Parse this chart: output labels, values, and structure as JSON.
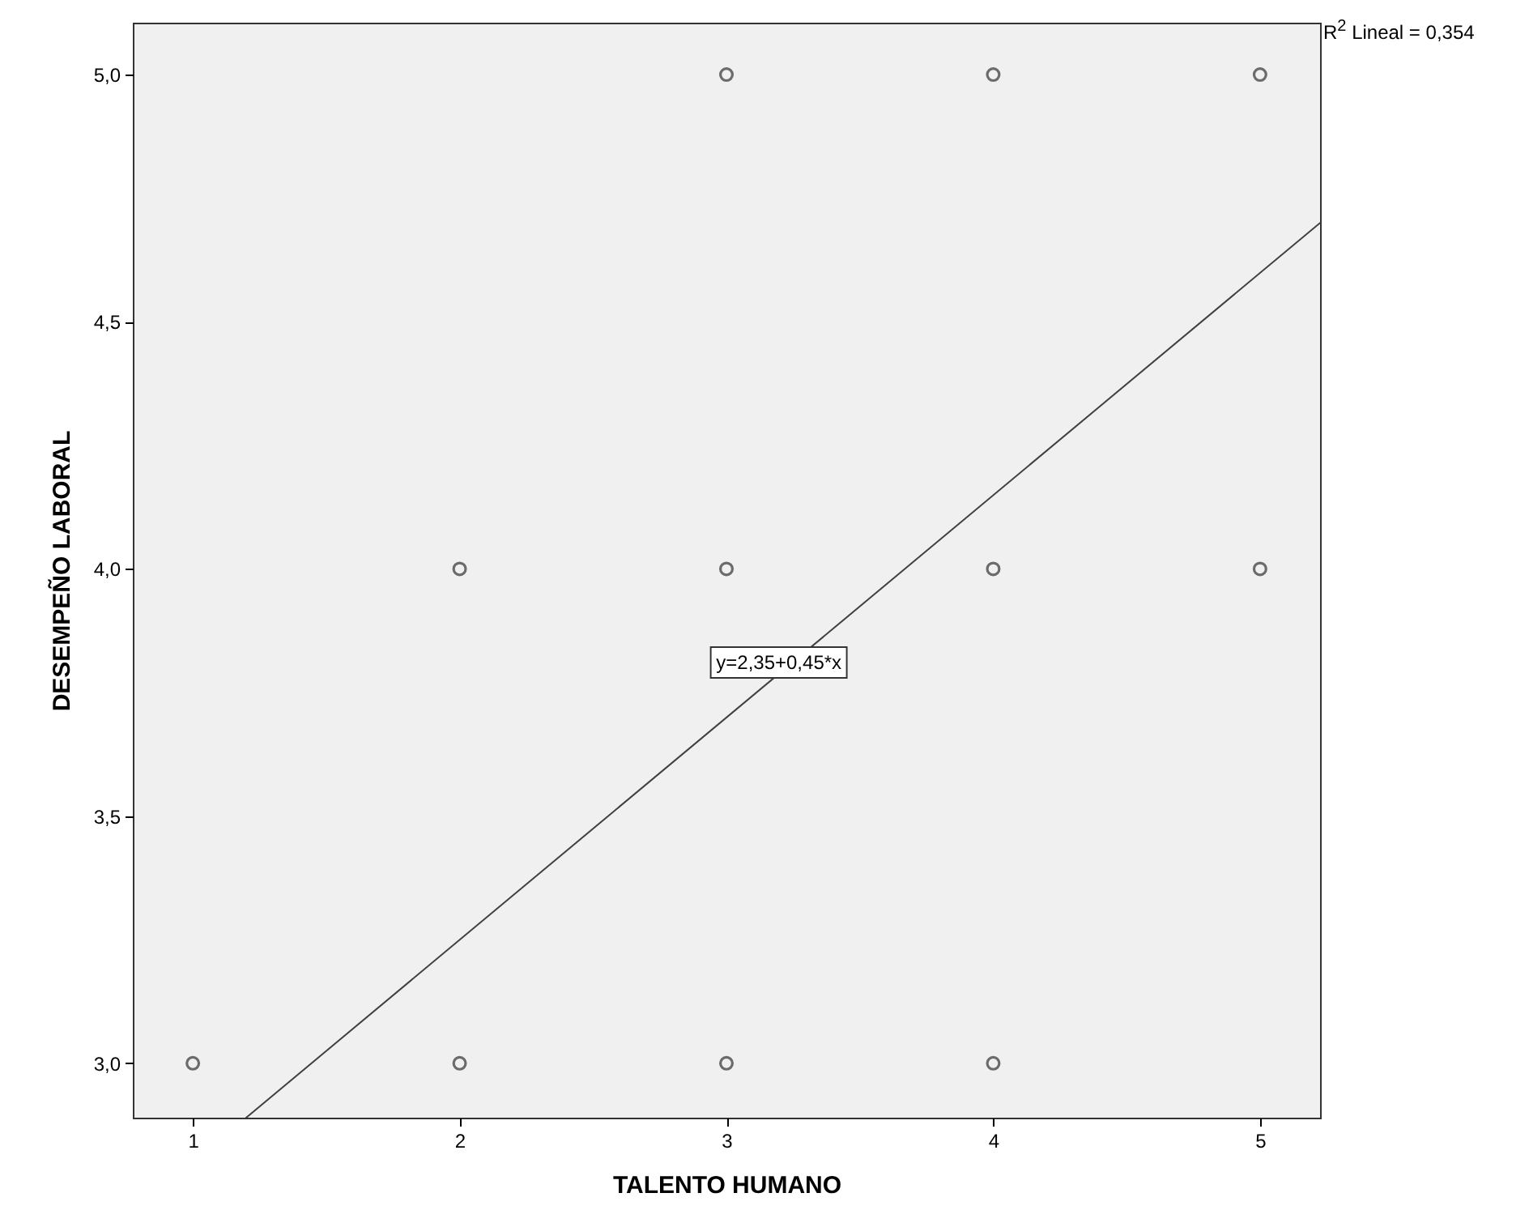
{
  "chart_data": {
    "type": "scatter",
    "xlabel": "TALENTO HUMANO",
    "ylabel": "DESEMPEÑO LABORAL",
    "xlim": [
      0.775,
      5.225
    ],
    "ylim": [
      2.89,
      5.105
    ],
    "xticks": [
      1,
      2,
      3,
      4,
      5
    ],
    "yticks": [
      {
        "value": 3,
        "label": "3,0"
      },
      {
        "value": 3.5,
        "label": "3,5"
      },
      {
        "value": 4,
        "label": "4,0"
      },
      {
        "value": 4.5,
        "label": "4,5"
      },
      {
        "value": 5,
        "label": "5,0"
      }
    ],
    "series": [
      {
        "color": "#333333",
        "marker": "circle",
        "x": [
          1,
          2,
          3,
          4,
          2,
          3,
          4,
          5,
          3,
          4,
          5
        ],
        "values": [
          3,
          3,
          3,
          3,
          4,
          4,
          4,
          4,
          5,
          5,
          5
        ]
      },
      {
        "type": "line",
        "color": "#404040",
        "x": [
          1.2,
          5.225
        ],
        "values": [
          2.89,
          4.7
        ]
      }
    ],
    "grid": false,
    "annotations": [
      "y=2,35+0,45*x",
      "R$^{2}$ Lineal = 0,354"
    ]
  }
}
